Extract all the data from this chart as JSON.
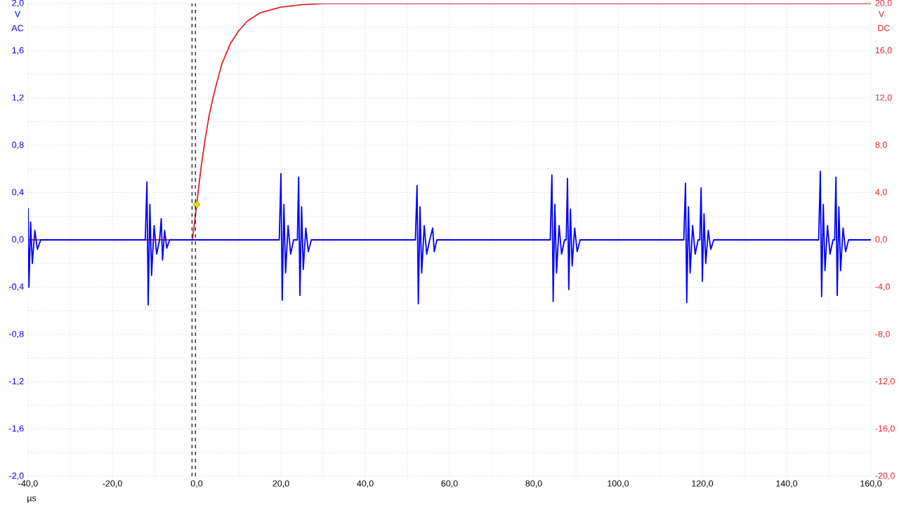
{
  "chart_data": {
    "type": "line",
    "xlabel": "µs",
    "ylabel": "V",
    "y2label": "V",
    "annotations": [
      "AC",
      "DC"
    ],
    "xlim": [
      -40,
      160
    ],
    "ylim": [
      -2.0,
      2.0
    ],
    "y2lim": [
      -20,
      20
    ],
    "xticks": [
      {
        "value": -40,
        "label": "-40,0"
      },
      {
        "value": -30,
        "label": null
      },
      {
        "value": -20,
        "label": "-20,0"
      },
      {
        "value": -10,
        "label": null
      },
      {
        "value": 0,
        "label": "0,0"
      },
      {
        "value": 10,
        "label": null
      },
      {
        "value": 20,
        "label": "20,0"
      },
      {
        "value": 30,
        "label": null
      },
      {
        "value": 40,
        "label": "40,0"
      },
      {
        "value": 50,
        "label": null
      },
      {
        "value": 60,
        "label": "60,0"
      },
      {
        "value": 70,
        "label": null
      },
      {
        "value": 80,
        "label": "80,0"
      },
      {
        "value": 90,
        "label": null
      },
      {
        "value": 100,
        "label": "100,0"
      },
      {
        "value": 110,
        "label": null
      },
      {
        "value": 120,
        "label": "120,0"
      },
      {
        "value": 130,
        "label": null
      },
      {
        "value": 140,
        "label": "140,0"
      },
      {
        "value": 150,
        "label": null
      },
      {
        "value": 160,
        "label": "160,0"
      }
    ],
    "yticks": [
      {
        "value": -2.0,
        "label": "-2,0"
      },
      {
        "value": -1.8,
        "label": null
      },
      {
        "value": -1.6,
        "label": "-1,6"
      },
      {
        "value": -1.4,
        "label": null
      },
      {
        "value": -1.2,
        "label": "-1,2"
      },
      {
        "value": -1.0,
        "label": null
      },
      {
        "value": -0.8,
        "label": "-0,8"
      },
      {
        "value": -0.6,
        "label": null
      },
      {
        "value": -0.4,
        "label": "-0,4"
      },
      {
        "value": -0.2,
        "label": null
      },
      {
        "value": 0.0,
        "label": "0,0"
      },
      {
        "value": 0.2,
        "label": null
      },
      {
        "value": 0.4,
        "label": "0,4"
      },
      {
        "value": 0.6,
        "label": null
      },
      {
        "value": 0.8,
        "label": "0,8"
      },
      {
        "value": 1.0,
        "label": null
      },
      {
        "value": 1.2,
        "label": "1,2"
      },
      {
        "value": 1.4,
        "label": null
      },
      {
        "value": 1.6,
        "label": "1,6"
      },
      {
        "value": 1.8,
        "label": null
      },
      {
        "value": 2.0,
        "label": "2,0"
      }
    ],
    "y2ticks": [
      {
        "value": -20,
        "label": "-20,0"
      },
      {
        "value": -16,
        "label": "-16,0"
      },
      {
        "value": -12,
        "label": "-12,0"
      },
      {
        "value": -8,
        "label": "-8,0"
      },
      {
        "value": -4,
        "label": "-4,0"
      },
      {
        "value": 0,
        "label": "0,0"
      },
      {
        "value": 4,
        "label": "4,0"
      },
      {
        "value": 8,
        "label": "8,0"
      },
      {
        "value": 12,
        "label": "12,0"
      },
      {
        "value": 16,
        "label": "16,0"
      },
      {
        "value": 20,
        "label": "20,0"
      }
    ],
    "grid": true,
    "ref_lines": [
      {
        "axis": "x",
        "value": -1.1,
        "color": "#000000",
        "line_style": "dashed"
      },
      {
        "axis": "x",
        "value": -0.3,
        "color": "#000000",
        "line_style": "dashed"
      }
    ],
    "series": [
      {
        "color": "#e8232a",
        "axis": "y2",
        "x": [
          -40,
          -1,
          0,
          1,
          2,
          3,
          4,
          5,
          6,
          8,
          10,
          12,
          15,
          20,
          25,
          30,
          160
        ],
        "values": [
          0,
          0,
          3.0,
          6.0,
          8.5,
          10.6,
          12.2,
          13.6,
          14.9,
          16.6,
          17.7,
          18.5,
          19.2,
          19.7,
          19.9,
          20.0,
          20.0
        ]
      },
      {
        "color": "#0000ff",
        "axis": "y",
        "x": [
          -40,
          -39.8,
          -39.4,
          -39,
          -38.4,
          -37.8,
          -37,
          -12.2,
          -11.8,
          -11.5,
          -11.1,
          -10.7,
          -10.1,
          -9.5,
          -8.8,
          -8.4,
          -8.1,
          -7.6,
          -7.1,
          -6.4,
          19.6,
          20,
          20.3,
          20.7,
          21.1,
          21.7,
          22.3,
          23,
          23.9,
          24.2,
          24.5,
          24.9,
          25.3,
          25.9,
          26.5,
          27.2,
          51.9,
          52.3,
          52.6,
          53,
          53.4,
          54,
          54.6,
          55.3,
          56,
          56.4,
          57,
          83.9,
          84.3,
          84.6,
          85,
          85.4,
          86,
          86.6,
          87.3,
          87.7,
          88,
          88.3,
          88.7,
          89.1,
          89.7,
          90.3,
          91,
          115.6,
          116,
          116.3,
          116.7,
          117.1,
          117.7,
          118.3,
          119,
          119.4,
          119.7,
          120,
          120.4,
          120.8,
          121.4,
          122,
          122.7,
          147.6,
          148,
          148.3,
          148.7,
          149.1,
          149.7,
          150.3,
          151,
          151.4,
          151.7,
          152,
          152.4,
          152.8,
          153.4,
          154,
          154.7,
          160
        ],
        "values": [
          0.27,
          -0.4,
          0.15,
          -0.2,
          0.08,
          -0.08,
          0,
          0,
          0.49,
          -0.55,
          0.3,
          -0.3,
          0.12,
          -0.12,
          0,
          0.18,
          -0.17,
          0.08,
          -0.07,
          0,
          0,
          0.56,
          -0.51,
          0.3,
          -0.28,
          0.12,
          -0.12,
          0,
          0,
          0.53,
          -0.47,
          0.28,
          -0.25,
          0.1,
          -0.1,
          0,
          0,
          0.46,
          -0.54,
          0.28,
          -0.28,
          0.12,
          -0.12,
          0,
          0.1,
          -0.1,
          0,
          0,
          0.55,
          -0.52,
          0.3,
          -0.28,
          0.12,
          -0.12,
          0,
          0,
          0.52,
          -0.42,
          0.26,
          -0.22,
          0.1,
          -0.1,
          0,
          0,
          0.48,
          -0.53,
          0.28,
          -0.28,
          0.12,
          -0.12,
          0,
          0,
          0.44,
          -0.35,
          0.22,
          -0.2,
          0.08,
          -0.08,
          0,
          0,
          0.58,
          -0.48,
          0.3,
          -0.26,
          0.12,
          -0.12,
          0,
          0,
          0.53,
          -0.47,
          0.28,
          -0.26,
          0.1,
          -0.1,
          0,
          0
        ]
      },
      {
        "color": "#f0e000",
        "axis": "y",
        "type": "scatter",
        "marker": "diamond",
        "x": [
          0
        ],
        "values": [
          0.3
        ]
      }
    ]
  }
}
